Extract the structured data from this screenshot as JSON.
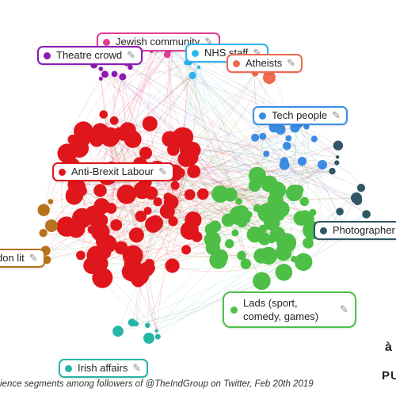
{
  "segments": [
    {
      "id": "jewish",
      "label": "Jewish community",
      "color": "#e23b94"
    },
    {
      "id": "theatre",
      "label": "Theatre crowd",
      "color": "#8e19b5"
    },
    {
      "id": "nhs",
      "label": "NHS staff",
      "color": "#2bb6ef"
    },
    {
      "id": "atheists",
      "label": "Atheists",
      "color": "#f06a4e"
    },
    {
      "id": "tech",
      "label": "Tech people",
      "color": "#3a8de3"
    },
    {
      "id": "antibrexit",
      "label": "Anti-Brexit Labour",
      "color": "#e0161d"
    },
    {
      "id": "photographers",
      "label": "Photographer",
      "color": "#2f5664"
    },
    {
      "id": "londonlit",
      "label": "don lit",
      "color": "#b8721e"
    },
    {
      "id": "lads",
      "label": "Lads (sport, comedy, games)",
      "color": "#4dbf47"
    },
    {
      "id": "irish",
      "label": "Irish affairs",
      "color": "#27b5a6"
    }
  ],
  "edit_icon": "pencil-icon",
  "caption": "ience segments among followers of @TheIndGroup on Twitter, Feb 20th 2019",
  "brand_top": "à",
  "brand_bottom": "PU"
}
